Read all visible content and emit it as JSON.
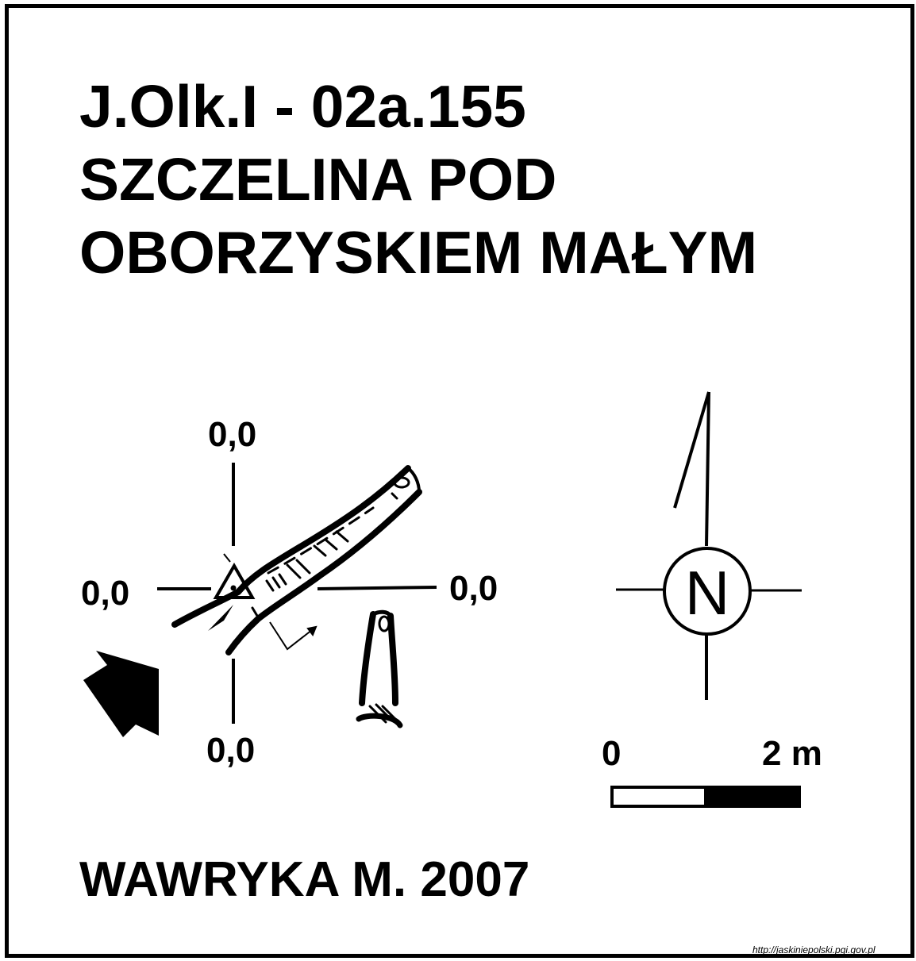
{
  "title": {
    "line1": "J.Olk.I - 02a.155",
    "line2": "SZCZELINA POD",
    "line3": "OBORZYSKIEM MAŁYM"
  },
  "axis_labels": {
    "top": "0,0",
    "left": "0,0",
    "right": "0,0",
    "bottom": "0,0"
  },
  "compass": {
    "letter": "N"
  },
  "scale_bar": {
    "start_label": "0",
    "end_label": "2 m"
  },
  "author": "WAWRYKA M. 2007",
  "source_url": "http://jaskiniepolski.pgi.gov.pl",
  "colors": {
    "ink": "#000000",
    "paper": "#ffffff"
  }
}
